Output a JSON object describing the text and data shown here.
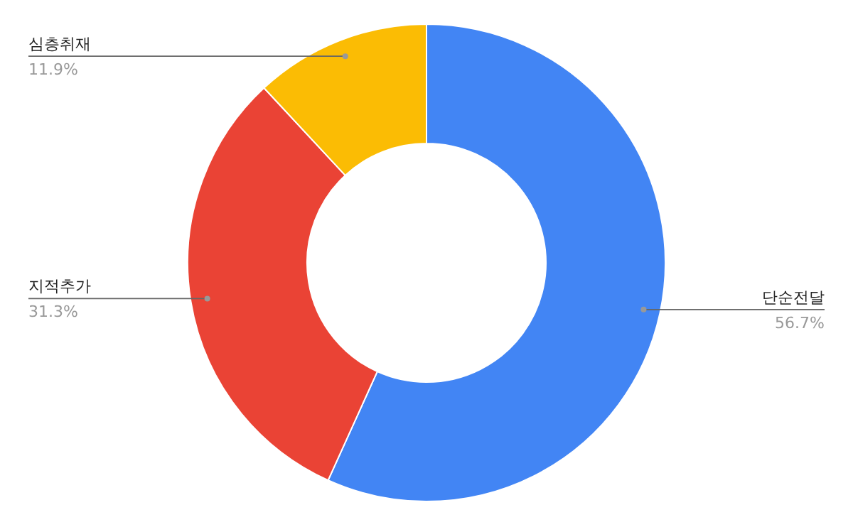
{
  "chart_data": {
    "type": "donut",
    "categories": [
      "단순전달",
      "지적추가",
      "심층취재"
    ],
    "values": [
      56.7,
      31.3,
      11.9
    ],
    "colors": [
      "#4285f4",
      "#ea4335",
      "#fbbc04"
    ],
    "value_labels": [
      "56.7%",
      "31.3%",
      "11.9%"
    ]
  }
}
